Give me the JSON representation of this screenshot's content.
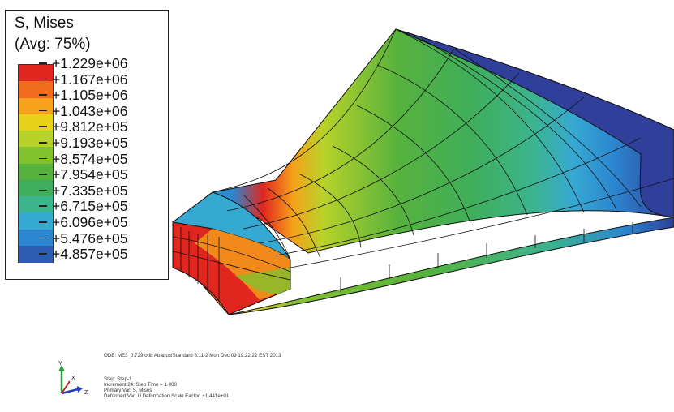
{
  "legend": {
    "title": "S, Mises",
    "subtitle": "(Avg: 75%)",
    "levels": [
      {
        "label": "+1.229e+06",
        "color": "#e0261f"
      },
      {
        "label": "+1.167e+06",
        "color": "#f26b1d"
      },
      {
        "label": "+1.105e+06",
        "color": "#f6a21a"
      },
      {
        "label": "+1.043e+06",
        "color": "#e8d11b"
      },
      {
        "label": "+9.812e+05",
        "color": "#b8d22a"
      },
      {
        "label": "+9.193e+05",
        "color": "#82c22f"
      },
      {
        "label": "+8.574e+05",
        "color": "#56b23d"
      },
      {
        "label": "+7.954e+05",
        "color": "#3fae5c"
      },
      {
        "label": "+7.335e+05",
        "color": "#3cb48e"
      },
      {
        "label": "+6.715e+05",
        "color": "#36a9d3"
      },
      {
        "label": "+6.096e+05",
        "color": "#2c86cf"
      },
      {
        "label": "+5.476e+05",
        "color": "#2d5cb3"
      },
      {
        "label": "+4.857e+05",
        "color": "#2f3f9a"
      }
    ]
  },
  "info": {
    "line1": "ODB: ME3_0.729.odb    Abaqus/Standard 6.11-2    Mon Dec 09 19:22:22 EST 2013",
    "step": "Step: Step-1",
    "increment": "Increment    24: Step Time =    1.000",
    "primary": "Primary Var: S, Mises",
    "deformed": "Deformed Var: U   Deformation Scale Factor: +1.441e+01"
  },
  "triad": {
    "x_label": "X",
    "y_label": "Y",
    "z_label": "Z",
    "colors": {
      "x": "#c0262a",
      "y": "#2a9a3a",
      "z": "#1f3fbf"
    }
  }
}
